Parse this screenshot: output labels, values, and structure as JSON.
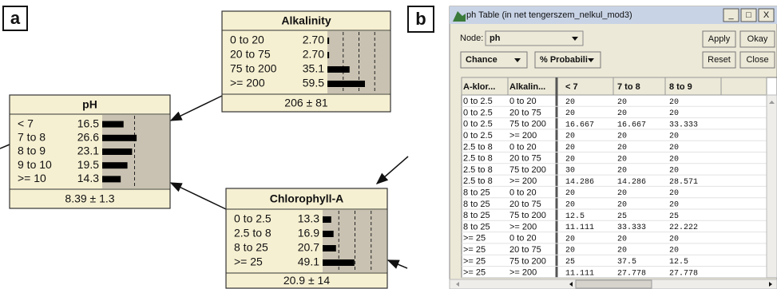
{
  "panel_a": {
    "label": "a",
    "nodes": [
      {
        "title": "Alkalinity",
        "states": [
          "0 to 20",
          "20 to 75",
          "75 to 200",
          ">= 200"
        ],
        "values": [
          2.7,
          2.7,
          35.1,
          59.5
        ],
        "value_labels": [
          "2.70",
          "2.70",
          "35.1",
          "59.5"
        ],
        "summary": "206 ± 81"
      },
      {
        "title": "pH",
        "states": [
          "< 7",
          "7 to 8",
          "8 to 9",
          "9 to 10",
          ">= 10"
        ],
        "values": [
          16.5,
          26.6,
          23.1,
          19.5,
          14.3
        ],
        "summary": "8.39 ± 1.3"
      },
      {
        "title": "Chlorophyll-A",
        "states": [
          "0 to 2.5",
          "2.5 to 8",
          "8 to 25",
          ">= 25"
        ],
        "values": [
          13.3,
          16.9,
          20.7,
          49.1
        ],
        "summary": "20.9 ± 14"
      }
    ]
  },
  "panel_b": {
    "label": "b",
    "window": {
      "title": "ph Table (in net tengerszem_nelkul_mod3)",
      "controls": [
        "_",
        "□",
        "X"
      ]
    },
    "node_label": "Node:",
    "node_value": "ph",
    "buttons": [
      "Apply",
      "Okay",
      "Reset",
      "Close"
    ],
    "dropdowns": [
      "Chance",
      "% Probabili"
    ],
    "table": {
      "columns": [
        "A-klor...",
        "Alkalin...",
        "< 7",
        "7 to 8",
        "8 to 9"
      ],
      "rows": [
        [
          "0 to 2.5",
          "0 to 20",
          20,
          20,
          20
        ],
        [
          "0 to 2.5",
          "20 to 75",
          20,
          20,
          20
        ],
        [
          "0 to 2.5",
          "75 to 200",
          16.667,
          16.667,
          33.333
        ],
        [
          "0 to 2.5",
          ">= 200",
          20,
          20,
          20
        ],
        [
          "2.5 to 8",
          "0 to 20",
          20,
          20,
          20
        ],
        [
          "2.5 to 8",
          "20 to 75",
          20,
          20,
          20
        ],
        [
          "2.5 to 8",
          "75 to 200",
          30,
          20,
          20
        ],
        [
          "2.5 to 8",
          ">= 200",
          14.286,
          14.286,
          28.571
        ],
        [
          "8 to 25",
          "0 to 20",
          20,
          20,
          20
        ],
        [
          "8 to 25",
          "20 to 75",
          20,
          20,
          20
        ],
        [
          "8 to 25",
          "75 to 200",
          12.5,
          25,
          25
        ],
        [
          "8 to 25",
          ">= 200",
          11.111,
          33.333,
          22.222
        ],
        [
          ">= 25",
          "0 to 20",
          20,
          20,
          20
        ],
        [
          ">= 25",
          "20 to 75",
          20,
          20,
          20
        ],
        [
          ">= 25",
          "75 to 200",
          25,
          37.5,
          12.5
        ],
        [
          ">= 25",
          ">= 200",
          11.111,
          27.778,
          27.778
        ]
      ]
    }
  }
}
